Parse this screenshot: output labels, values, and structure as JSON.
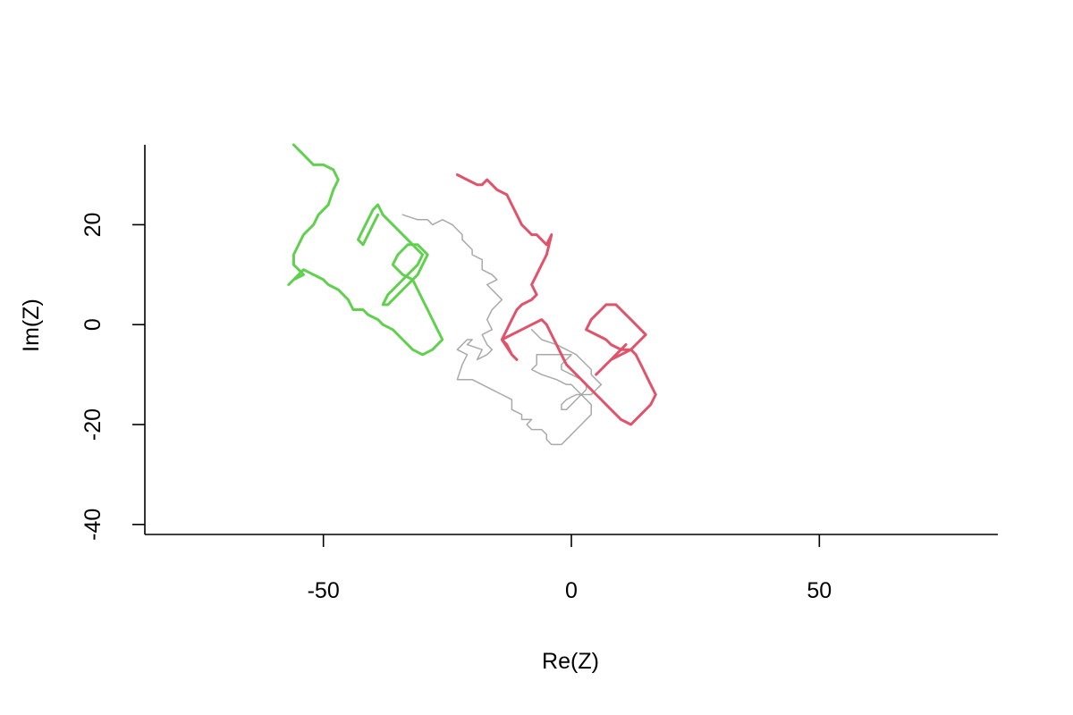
{
  "chart_data": {
    "type": "line",
    "title": "",
    "xlabel": "Re(Z)",
    "ylabel": "Im(Z)",
    "xlim": [
      -86,
      86
    ],
    "ylim": [
      -42,
      36
    ],
    "xticks": [
      -50,
      0,
      50
    ],
    "yticks": [
      -40,
      -20,
      0,
      20
    ],
    "xtick_labels": [
      "-50",
      "0",
      "50"
    ],
    "ytick_labels": [
      "-40",
      "-20",
      "0",
      "20"
    ],
    "grid": false,
    "legend": "none",
    "series": [
      {
        "color": "#A9A9A9",
        "style": "thin",
        "x": [
          -34,
          -31,
          -29,
          -28,
          -26,
          -24,
          -23,
          -22,
          -22,
          -20,
          -20,
          -18,
          -18,
          -16,
          -15,
          -17,
          -16,
          -14,
          -16,
          -17,
          -16,
          -18,
          -17,
          -16,
          -17,
          -19,
          -18,
          -21,
          -20,
          -21,
          -23,
          -21,
          -22,
          -23,
          -20,
          -18,
          -16,
          -14,
          -12,
          -12,
          -12,
          -10,
          -10,
          -8,
          -9,
          -8,
          -7,
          -6,
          -5,
          -5,
          -4,
          -3,
          -2,
          -1,
          0,
          1,
          2,
          3,
          4,
          4,
          3,
          2,
          1,
          0,
          -1,
          -3,
          -6,
          -8,
          -7,
          -7,
          -5,
          -3,
          -1,
          0,
          -1,
          -2,
          -2,
          0,
          2,
          3,
          3,
          2,
          1,
          -1,
          -2,
          -2,
          -1,
          0,
          1,
          2,
          4,
          5,
          6,
          5,
          4,
          4,
          3,
          2,
          1,
          -1,
          -3,
          -6,
          -7,
          -8
        ],
        "y": [
          22,
          21,
          21,
          20,
          21,
          20,
          19,
          18,
          17,
          15,
          14,
          13,
          11,
          10,
          9,
          8,
          7,
          5,
          3,
          1,
          -1,
          -2,
          -4,
          -5,
          -6,
          -7,
          -5,
          -4,
          -3,
          -3,
          -5,
          -6,
          -8,
          -11,
          -11,
          -12,
          -13,
          -14,
          -15,
          -16,
          -17,
          -18,
          -19,
          -19,
          -20,
          -21,
          -21,
          -21,
          -22,
          -23,
          -24,
          -24,
          -24,
          -23,
          -22,
          -21,
          -20,
          -19,
          -18,
          -16,
          -15,
          -14,
          -13,
          -12,
          -12,
          -11,
          -10,
          -9,
          -8,
          -6,
          -6,
          -6,
          -6,
          -6,
          -7,
          -8,
          -9,
          -10,
          -11,
          -12,
          -13,
          -14,
          -14,
          -15,
          -16,
          -17,
          -17,
          -16,
          -15,
          -14,
          -14,
          -13,
          -12,
          -11,
          -10,
          -9,
          -8,
          -7,
          -6,
          -5,
          -4,
          -3,
          -2,
          -1
        ],
        "note_order": "not-printed"
      },
      {
        "color": "#DF536B",
        "style": "thick",
        "x": [
          -23,
          -21,
          -19,
          -18,
          -17,
          -16,
          -15,
          -13,
          -12,
          -11,
          -10,
          -9,
          -8,
          -7,
          -6,
          -5,
          -4,
          -5,
          -6,
          -7,
          -8,
          -7,
          -8,
          -10,
          -11,
          -12,
          -13,
          -14,
          -13,
          -12,
          -11,
          -12,
          -14,
          -12,
          -10,
          -8,
          -6,
          -5,
          -4,
          -3,
          -2,
          -1,
          0,
          1,
          2,
          3,
          4,
          5,
          6,
          7,
          8,
          9,
          10,
          12,
          14,
          16,
          17,
          16,
          15,
          14,
          13,
          12,
          10,
          8,
          7,
          5,
          3,
          4,
          5,
          6,
          7,
          8,
          9,
          10,
          11,
          12,
          13,
          14,
          15,
          14,
          13,
          12,
          10,
          8,
          7,
          6,
          5,
          6,
          7,
          8,
          9,
          10,
          11
        ],
        "y": [
          30,
          29,
          28,
          28,
          29,
          28,
          27,
          26,
          24,
          22,
          20,
          19,
          18,
          18,
          17,
          16,
          18,
          14,
          12,
          10,
          8,
          6,
          5,
          4,
          3,
          1,
          -1,
          -3,
          -4,
          -6,
          -7,
          -6,
          -3,
          -2,
          -1,
          0,
          1,
          0,
          -2,
          -4,
          -6,
          -8,
          -9,
          -10,
          -11,
          -12,
          -13,
          -14,
          -15,
          -16,
          -17,
          -18,
          -19,
          -20,
          -18,
          -16,
          -14,
          -12,
          -10,
          -8,
          -6,
          -5,
          -5,
          -4,
          -3,
          -2,
          -1,
          1,
          2,
          3,
          4,
          4,
          4,
          3,
          2,
          1,
          0,
          -1,
          -2,
          -3,
          -4,
          -5,
          -6,
          -7,
          -8,
          -9,
          -10,
          -9,
          -8,
          -7,
          -6,
          -5,
          -4
        ],
        "note_order": "not-printed"
      },
      {
        "color": "#61D04F",
        "style": "thick",
        "x": [
          -56,
          -55,
          -54,
          -53,
          -52,
          -50,
          -48,
          -47,
          -48,
          -49,
          -51,
          -52,
          -54,
          -55,
          -56,
          -56,
          -55,
          -54,
          -56,
          -57,
          -56,
          -55,
          -54,
          -52,
          -50,
          -49,
          -47,
          -45,
          -44,
          -42,
          -41,
          -39,
          -38,
          -36,
          -34,
          -32,
          -30,
          -28,
          -26,
          -27,
          -28,
          -29,
          -30,
          -31,
          -32,
          -34,
          -36,
          -35,
          -33,
          -31,
          -29,
          -30,
          -31,
          -33,
          -35,
          -37,
          -38,
          -37,
          -35,
          -33,
          -31,
          -30,
          -32,
          -34,
          -36,
          -38,
          -39,
          -40,
          -41,
          -42,
          -43,
          -42,
          -41,
          -40,
          -39
        ],
        "y": [
          36,
          35,
          34,
          33,
          32,
          32,
          31,
          29,
          27,
          24,
          22,
          20,
          18,
          16,
          14,
          12,
          11,
          10,
          9,
          8,
          9,
          10,
          11,
          10,
          9,
          8,
          7,
          5,
          3,
          3,
          2,
          1,
          0,
          -1,
          -3,
          -5,
          -6,
          -5,
          -3,
          -1,
          1,
          3,
          5,
          7,
          9,
          10,
          12,
          14,
          16,
          16,
          14,
          12,
          10,
          8,
          6,
          4,
          4,
          6,
          8,
          10,
          12,
          14,
          16,
          18,
          20,
          22,
          24,
          23,
          21,
          19,
          17,
          16,
          18,
          20,
          22
        ],
        "note_order": "not-printed"
      }
    ]
  }
}
